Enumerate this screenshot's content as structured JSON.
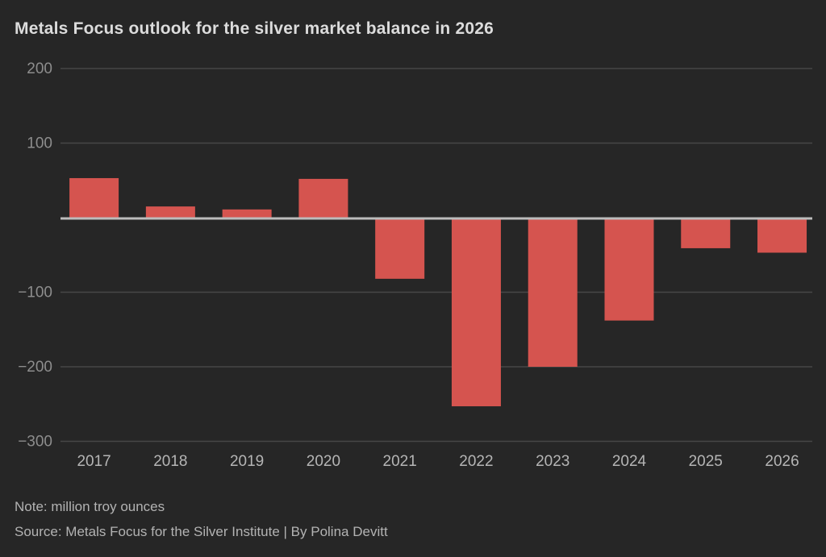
{
  "title": "Metals Focus outlook for the silver market balance in 2026",
  "footer": {
    "note": "Note: million troy ounces",
    "source": "Source: Metals Focus for the Silver Institute | By Polina Devitt"
  },
  "colors": {
    "background": "#262626",
    "bar": "#d5544f",
    "grid": "#474747",
    "baseline": "#bcbcbc",
    "title_text": "#dcdcdc",
    "y_tick_text": "#8d8d8d",
    "x_tick_text": "#b5b5b5",
    "footer_text": "#b3b3b3"
  },
  "chart_data": {
    "type": "bar",
    "title": "Metals Focus outlook for the silver market balance in 2026",
    "categories": [
      "2017",
      "2018",
      "2019",
      "2020",
      "2021",
      "2022",
      "2023",
      "2024",
      "2025",
      "2026"
    ],
    "values": [
      53,
      15,
      11,
      52,
      -82,
      -253,
      -200,
      -138,
      -41,
      -47
    ],
    "series_name": "Silver market balance",
    "unit": "million troy ounces",
    "xlabel": "",
    "ylabel": "",
    "ylim": [
      -300,
      200
    ],
    "yticks": [
      200,
      100,
      0,
      -100,
      -200,
      -300
    ],
    "zero_tick_labeled": false,
    "grid": true,
    "legend": false,
    "note": "Note: million troy ounces",
    "source": "Source: Metals Focus for the Silver Institute | By Polina Devitt"
  }
}
